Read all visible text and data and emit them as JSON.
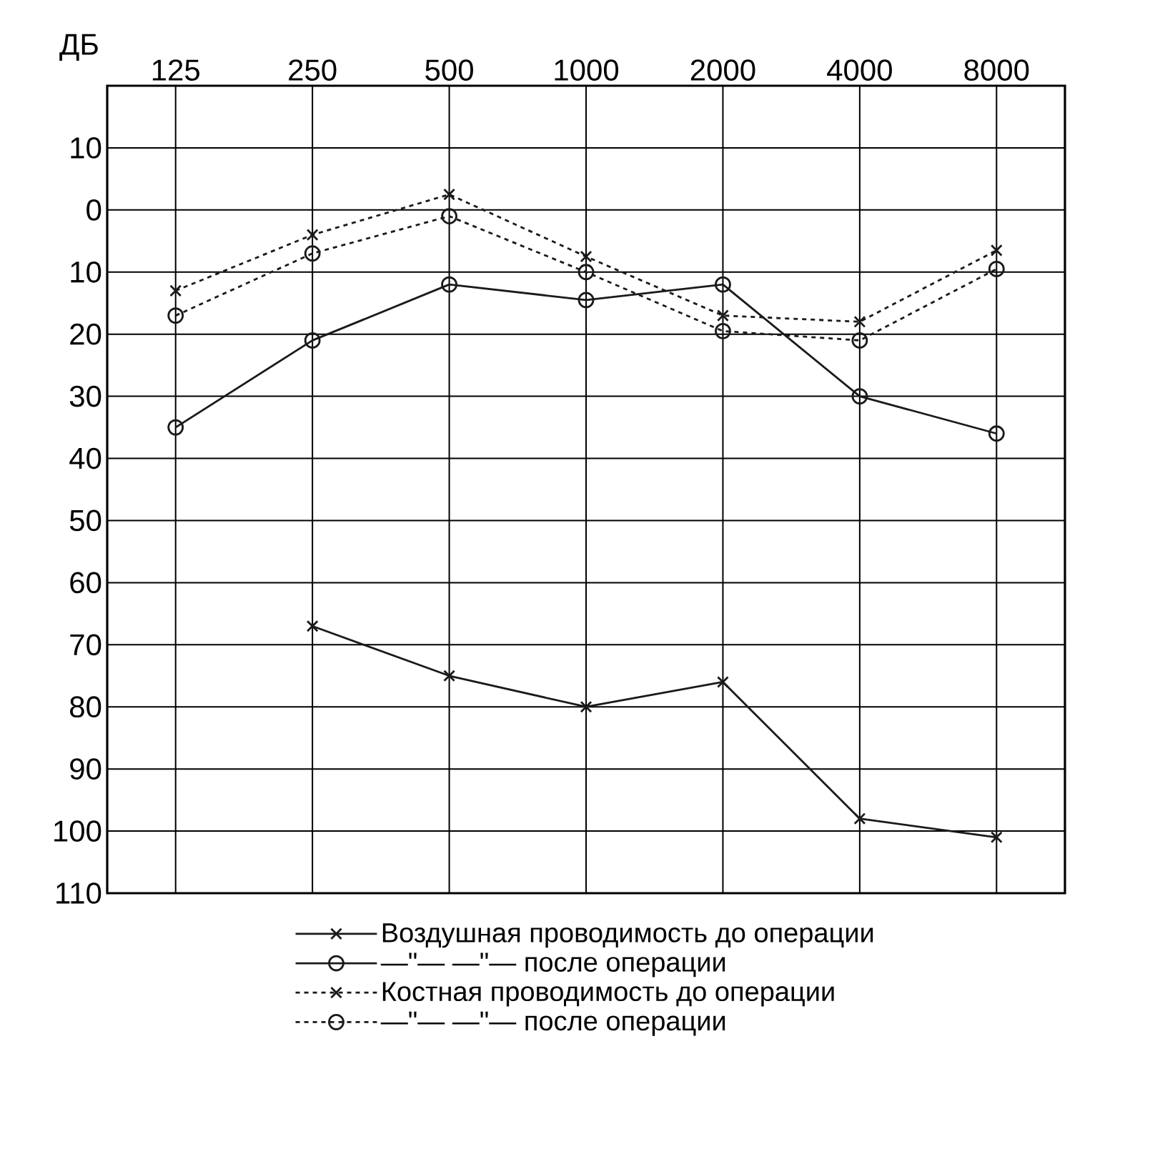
{
  "chart_data": {
    "type": "line",
    "ylabel": "ДБ",
    "categories": [
      "125",
      "250",
      "500",
      "1000",
      "2000",
      "4000",
      "8000"
    ],
    "ylim": [
      110,
      -20
    ],
    "yticks": [
      {
        "value": -10,
        "label": "10"
      },
      0,
      10,
      20,
      30,
      40,
      50,
      60,
      70,
      80,
      90,
      100,
      110
    ],
    "grid": true,
    "legend": "bottom",
    "series": [
      {
        "name": "Воздушная проводимость до операции",
        "color": "#1a1a1a",
        "marker": "cross",
        "line_style": "solid",
        "values": [
          null,
          67,
          75,
          80,
          76,
          98,
          101
        ]
      },
      {
        "name": "—\"— —\"— после операции",
        "color": "#1a1a1a",
        "marker": "circle",
        "line_style": "solid",
        "values": [
          35,
          21,
          12,
          14.5,
          12,
          30,
          36
        ]
      },
      {
        "name": "Костная проводимость до операции",
        "color": "#1a1a1a",
        "marker": "cross",
        "line_style": "dashed",
        "values": [
          13,
          4,
          -2.5,
          7.5,
          17,
          18,
          6.5
        ]
      },
      {
        "name": "—\"— —\"— после операции",
        "color": "#1a1a1a",
        "marker": "circle",
        "line_style": "dashed",
        "values": [
          17,
          7,
          1,
          10,
          19.5,
          21,
          9.5
        ]
      }
    ]
  }
}
